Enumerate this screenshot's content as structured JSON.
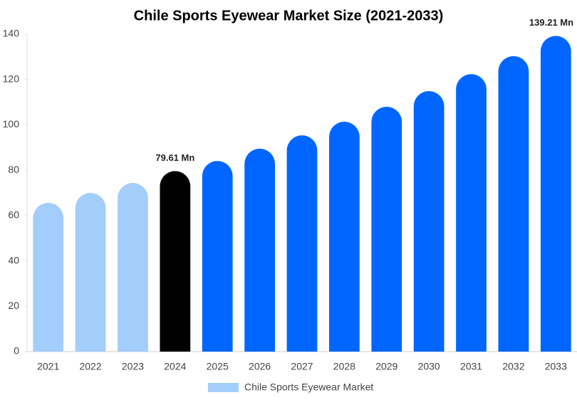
{
  "chart_data": {
    "type": "bar",
    "title": "Chile Sports Eyewear Market Size (2021-2033)",
    "categories": [
      "2021",
      "2022",
      "2023",
      "2024",
      "2025",
      "2026",
      "2027",
      "2028",
      "2029",
      "2030",
      "2031",
      "2032",
      "2033"
    ],
    "series": [
      {
        "name": "Chile Sports Eyewear Market",
        "color": "#a3cdfb",
        "colors": [
          "#a3cdfb",
          "#a3cdfb",
          "#a3cdfb",
          "#000000",
          "#0066ff",
          "#0066ff",
          "#0066ff",
          "#0066ff",
          "#0066ff",
          "#0066ff",
          "#0066ff",
          "#0066ff",
          "#0066ff"
        ],
        "values": [
          65.6,
          70.0,
          74.4,
          79.61,
          84.1,
          89.5,
          95.4,
          101.4,
          108.0,
          114.9,
          122.4,
          130.3,
          139.21
        ],
        "value_labels": [
          null,
          null,
          null,
          "79.61 Mn",
          null,
          null,
          null,
          null,
          null,
          null,
          null,
          null,
          "139.21 Mn"
        ]
      }
    ],
    "ylim": [
      0,
      140
    ],
    "yticks": [
      0,
      20,
      40,
      60,
      80,
      100,
      120,
      140
    ],
    "grid": false,
    "legend": "bottom"
  }
}
